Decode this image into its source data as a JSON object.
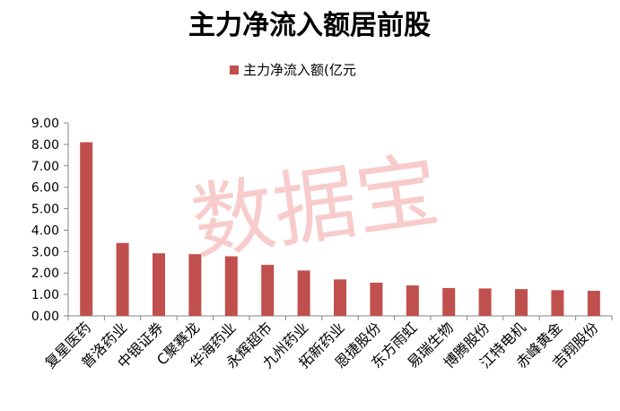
{
  "chart_data": {
    "type": "bar",
    "title": "主力净流入额居前股",
    "legend": {
      "position": "top",
      "entries": [
        "主力净流入额(亿元"
      ]
    },
    "series": [
      {
        "name": "主力净流入额(亿元",
        "color": "#c0504d",
        "values": [
          8.1,
          3.4,
          2.92,
          2.88,
          2.78,
          2.38,
          2.12,
          1.7,
          1.55,
          1.42,
          1.3,
          1.28,
          1.25,
          1.2,
          1.17
        ]
      }
    ],
    "categories": [
      "复星医药",
      "普洛药业",
      "中银证券",
      "C聚赛龙",
      "华海药业",
      "永辉超市",
      "九州药业",
      "拓新药业",
      "恩捷股份",
      "东方雨虹",
      "易瑞生物",
      "博腾股份",
      "江特电机",
      "赤峰黄金",
      "吉翔股份"
    ],
    "ylim": [
      0,
      9
    ],
    "yticks": [
      "0.00",
      "1.00",
      "2.00",
      "3.00",
      "4.00",
      "5.00",
      "6.00",
      "7.00",
      "8.00",
      "9.00"
    ],
    "grid": false,
    "watermark": "数据宝"
  }
}
